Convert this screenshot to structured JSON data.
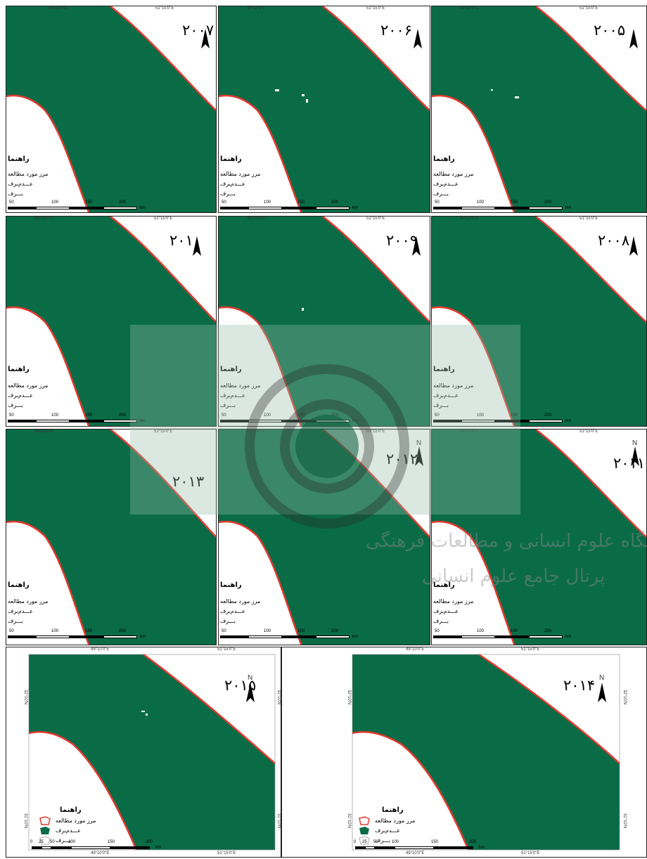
{
  "colors": {
    "no_snow": "#0a6b47",
    "boundary": "#e23a2e",
    "snow": "#ffffff"
  },
  "coords": {
    "lon_left": "49°10'0\"E",
    "lon_right": "51°15'0\"E",
    "lat_top": "32°10'N",
    "lat_bottom": "31°10'N"
  },
  "north_label": "N",
  "legend": {
    "title": "راهنما",
    "items": [
      "مرز مورد مطالعه",
      "عـــدم‌برف",
      "بـــرف"
    ]
  },
  "scale_small": [
    "50",
    "100",
    "150",
    "200",
    "km"
  ],
  "scale_large": [
    "0",
    "25",
    "50",
    "100",
    "150",
    "200",
    "km"
  ],
  "panels": [
    {
      "year": "۲۰۰۷"
    },
    {
      "year": "۲۰۰۶"
    },
    {
      "year": "۲۰۰۵"
    },
    {
      "year": "۲۰۱۰"
    },
    {
      "year": "۲۰۰۹"
    },
    {
      "year": "۲۰۰۸"
    },
    {
      "year": "۲۰۱۳"
    },
    {
      "year": "۲۰۱۲"
    },
    {
      "year": "۲۰۱۱"
    },
    {
      "year": "۲۰۱۵"
    },
    {
      "year": "۲۰۱۴"
    }
  ],
  "watermark": {
    "line1": "پژوهشگاه علوم انسانی و مطالعات فرهنگی",
    "line2": "پرتال جامع علوم انسانی"
  }
}
